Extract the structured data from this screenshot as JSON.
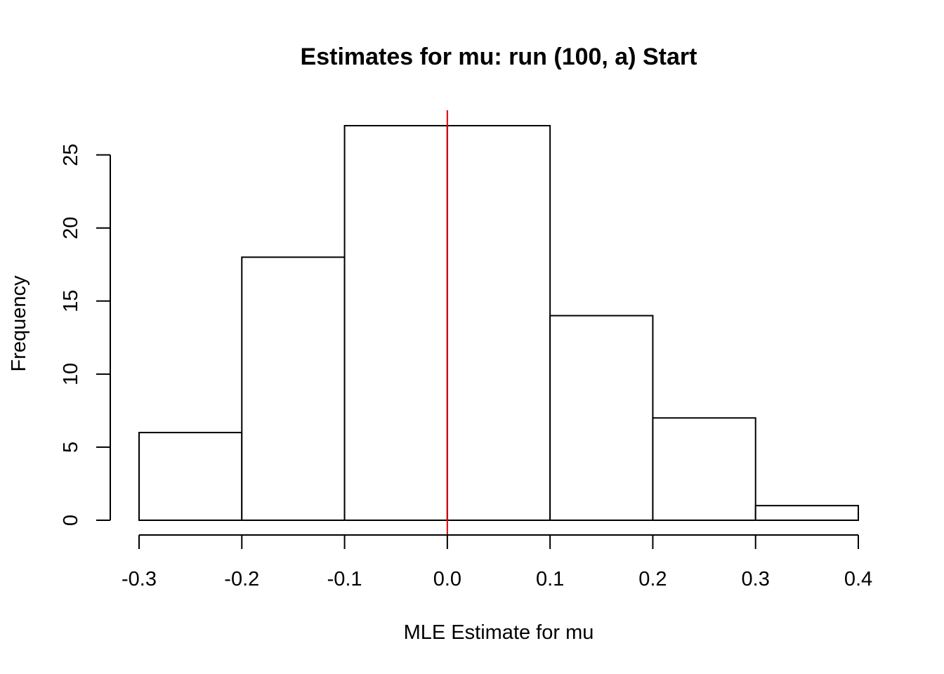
{
  "chart_data": {
    "type": "bar",
    "title": "Estimates for mu: run (100, a) Start",
    "xlabel": "MLE Estimate for mu",
    "ylabel": "Frequency",
    "bins": [
      {
        "x0": -0.3,
        "x1": -0.2,
        "count": 6
      },
      {
        "x0": -0.2,
        "x1": -0.1,
        "count": 18
      },
      {
        "x0": -0.1,
        "x1": 0.0,
        "count": 27
      },
      {
        "x0": 0.0,
        "x1": 0.1,
        "count": 27
      },
      {
        "x0": 0.1,
        "x1": 0.2,
        "count": 14
      },
      {
        "x0": 0.2,
        "x1": 0.3,
        "count": 7
      },
      {
        "x0": 0.3,
        "x1": 0.4,
        "count": 1
      }
    ],
    "xticks": [
      -0.3,
      -0.2,
      -0.1,
      0.0,
      0.1,
      0.2,
      0.3,
      0.4
    ],
    "xtick_labels": [
      "-0.3",
      "-0.2",
      "-0.1",
      "0.0",
      "0.1",
      "0.2",
      "0.3",
      "0.4"
    ],
    "yticks": [
      0,
      5,
      10,
      15,
      20,
      25
    ],
    "ytick_labels": [
      "0",
      "5",
      "10",
      "15",
      "20",
      "25"
    ],
    "xlim": [
      -0.3,
      0.4
    ],
    "ylim": [
      0,
      27
    ],
    "vline": {
      "x": 0.0,
      "color": "#dd0000"
    },
    "bar_fill": "#ffffff",
    "bar_stroke": "#000000",
    "grid": false
  }
}
